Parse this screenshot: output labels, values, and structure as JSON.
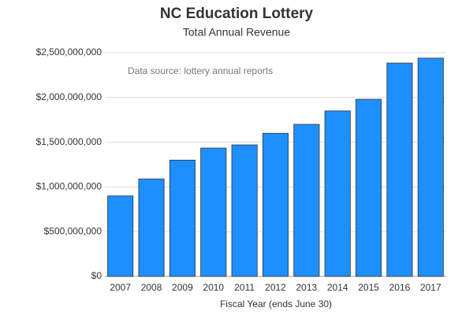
{
  "chart_data": {
    "type": "bar",
    "title": "NC Education Lottery",
    "subtitle": "Total Annual Revenue",
    "annotation": "Data source: lottery annual reports",
    "x_label": "Fiscal Year (ends June 30)",
    "categories": [
      "2007",
      "2008",
      "2009",
      "2010",
      "2011",
      "2012",
      "2013",
      "2014",
      "2015",
      "2016",
      "2017"
    ],
    "values": [
      900000000,
      1090000000,
      1300000000,
      1435000000,
      1470000000,
      1600000000,
      1700000000,
      1850000000,
      1980000000,
      2385000000,
      2440000000
    ],
    "color": "#1e8fff",
    "ylim": [
      0,
      2500000000
    ],
    "yticks": [
      {
        "value": 0,
        "label": "$0"
      },
      {
        "value": 500000000,
        "label": "$500,000,000"
      },
      {
        "value": 1000000000,
        "label": "$1,000,000,000"
      },
      {
        "value": 1500000000,
        "label": "$1,500,000,000"
      },
      {
        "value": 2000000000,
        "label": "$2,000,000,000"
      },
      {
        "value": 2500000000,
        "label": "$2,500,000,000"
      }
    ],
    "grid": true
  }
}
